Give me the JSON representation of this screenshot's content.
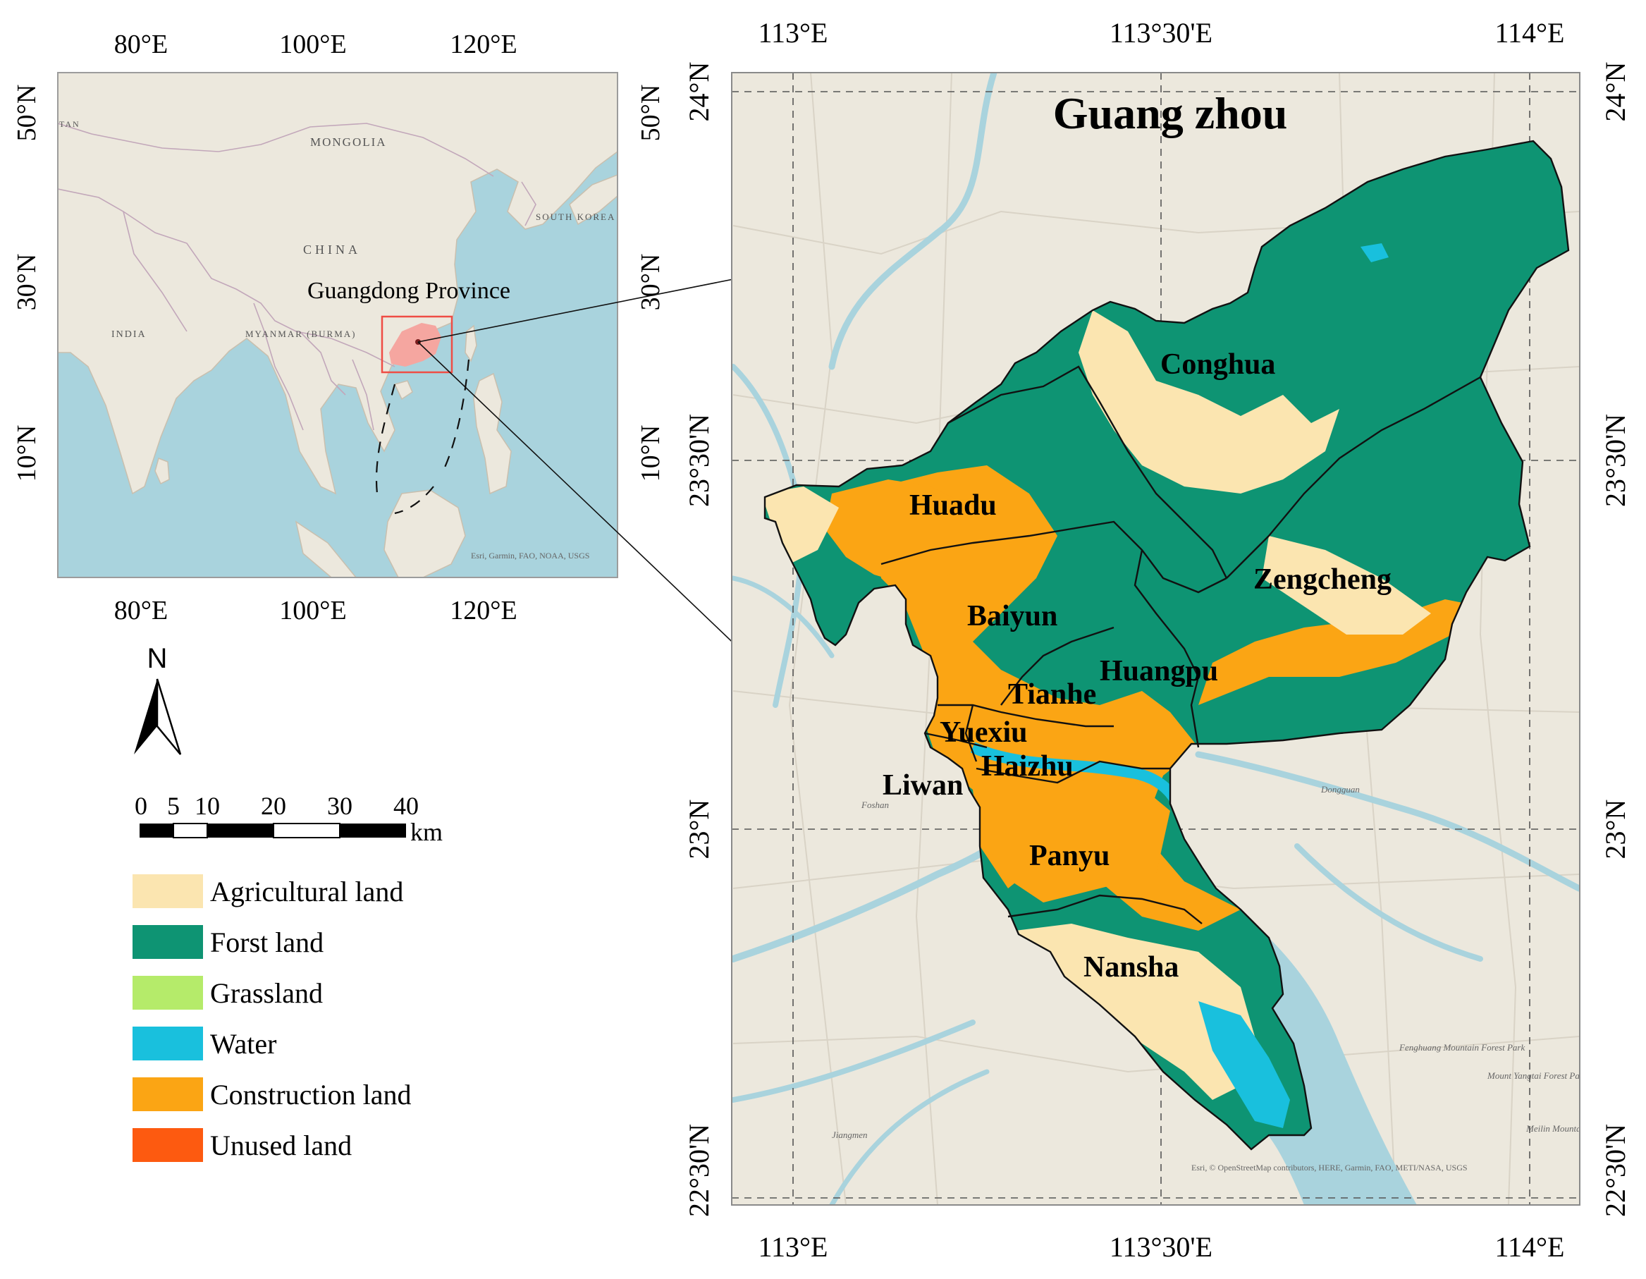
{
  "inset_map": {
    "lon_ticks_top": [
      "80°E",
      "100°E",
      "120°E"
    ],
    "lon_ticks_bottom": [
      "80°E",
      "100°E",
      "120°E"
    ],
    "lat_ticks_left": [
      "50°N",
      "30°N",
      "10°N"
    ],
    "lat_ticks_right": [
      "50°N",
      "30°N",
      "10°N"
    ],
    "countries": [
      "MONGOLIA",
      "CHINA",
      "SOUTH KOREA",
      "INDIA",
      "MYANMAR (BURMA)",
      "TAN"
    ],
    "highlight_label": "Guangdong Province",
    "attribution": "Esri, Garmin, FAO, NOAA, USGS"
  },
  "main_map": {
    "title": "Guang  zhou",
    "lon_ticks_top": [
      "113°E",
      "113°30'E",
      "114°E"
    ],
    "lon_ticks_bottom": [
      "113°E",
      "113°30'E",
      "114°E"
    ],
    "lat_ticks_left": [
      "24°N",
      "23°30'N",
      "23°N",
      "22°30'N"
    ],
    "lat_ticks_right": [
      "24°N",
      "23°30'N",
      "23°N",
      "22°30'N"
    ],
    "districts": [
      "Conghua",
      "Huadu",
      "Zengcheng",
      "Baiyun",
      "Huangpu",
      "Tianhe",
      "Yuexiu",
      "Haizhu",
      "Liwan",
      "Panyu",
      "Nansha"
    ],
    "basemap_places": [
      "Foshan",
      "Dongguan",
      "Jiangmen",
      "Fenghuang Mountain Forest Park",
      "Mount Yangtai Forest Park",
      "Meilin Mountain Country Park"
    ],
    "attribution": "Esri, © OpenStreetMap contributors, HERE, Garmin, FAO, METI/NASA, USGS"
  },
  "north_arrow": {
    "label": "N"
  },
  "scale_bar": {
    "ticks": [
      "0",
      "5",
      "10",
      "20",
      "30",
      "40"
    ],
    "unit": "km"
  },
  "legend": {
    "items": [
      {
        "label": "Agricultural land",
        "color": "#fbe5b0"
      },
      {
        "label": "Forst land",
        "color": "#0e9473"
      },
      {
        "label": "Grassland",
        "color": "#b5eb6a"
      },
      {
        "label": "Water",
        "color": "#19c0dd"
      },
      {
        "label": "Construction land",
        "color": "#fba514"
      },
      {
        "label": "Unused land",
        "color": "#fd5a10"
      }
    ]
  },
  "colors": {
    "basemap_land": "#ece8dd",
    "basemap_water": "#a9d3dd",
    "highlight": "#f5a6a0",
    "forest": "#0e9473",
    "construction": "#fba514",
    "agricultural": "#fbe5b0",
    "water": "#19c0dd"
  }
}
